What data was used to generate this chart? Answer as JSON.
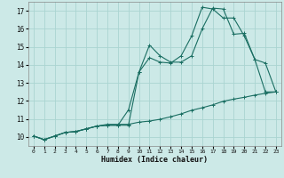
{
  "bg_color": "#cce9e7",
  "grid_color": "#aad4d1",
  "line_color": "#1a6e62",
  "xlabel": "Humidex (Indice chaleur)",
  "xlim": [
    -0.5,
    23.5
  ],
  "ylim": [
    9.5,
    17.5
  ],
  "yticks": [
    10,
    11,
    12,
    13,
    14,
    15,
    16,
    17
  ],
  "xticks": [
    0,
    1,
    2,
    3,
    4,
    5,
    6,
    7,
    8,
    9,
    10,
    11,
    12,
    13,
    14,
    15,
    16,
    17,
    18,
    19,
    20,
    21,
    22,
    23
  ],
  "line1_x": [
    0,
    1,
    2,
    3,
    4,
    5,
    6,
    7,
    8,
    9,
    10,
    11,
    12,
    13,
    14,
    15,
    16,
    17,
    18,
    19,
    20,
    21,
    22,
    23
  ],
  "line1_y": [
    10.05,
    9.85,
    10.05,
    10.25,
    10.3,
    10.45,
    10.6,
    10.65,
    10.65,
    11.5,
    13.6,
    15.1,
    14.5,
    14.15,
    14.15,
    14.5,
    16.0,
    17.15,
    17.1,
    15.7,
    15.75,
    14.3,
    14.1,
    12.5
  ],
  "line2_x": [
    0,
    1,
    2,
    3,
    4,
    5,
    6,
    7,
    8,
    9,
    10,
    11,
    12,
    13,
    14,
    15,
    16,
    17,
    18,
    19,
    20,
    21,
    22,
    23
  ],
  "line2_y": [
    10.05,
    9.85,
    10.05,
    10.25,
    10.3,
    10.45,
    10.6,
    10.65,
    10.65,
    10.65,
    13.6,
    14.4,
    14.15,
    14.1,
    14.5,
    15.6,
    17.2,
    17.1,
    16.6,
    16.6,
    15.6,
    14.3,
    12.5,
    12.5
  ],
  "line3_x": [
    0,
    1,
    2,
    3,
    4,
    5,
    6,
    7,
    8,
    9,
    10,
    11,
    12,
    13,
    14,
    15,
    16,
    17,
    18,
    19,
    20,
    21,
    22,
    23
  ],
  "line3_y": [
    10.05,
    9.85,
    10.05,
    10.25,
    10.3,
    10.45,
    10.6,
    10.7,
    10.7,
    10.7,
    10.82,
    10.88,
    10.98,
    11.12,
    11.28,
    11.48,
    11.62,
    11.78,
    11.98,
    12.1,
    12.2,
    12.32,
    12.42,
    12.5
  ]
}
